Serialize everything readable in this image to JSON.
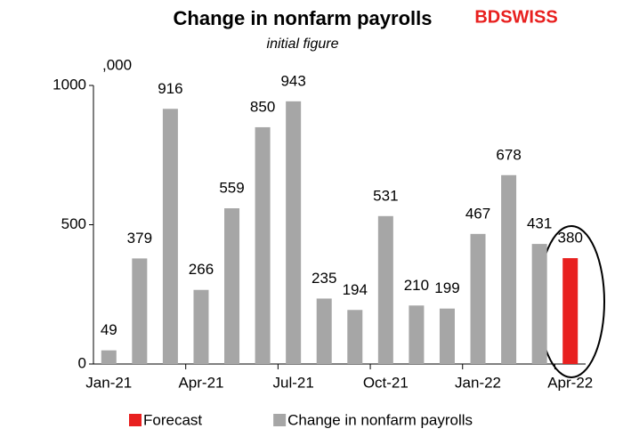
{
  "chart_data": {
    "type": "bar",
    "title": "Change in nonfarm payrolls",
    "subtitle": "initial figure",
    "logo": "BDSWISS",
    "y_unit": ",000",
    "categories": [
      "Jan-21",
      null,
      null,
      "Apr-21",
      null,
      null,
      "Jul-21",
      null,
      null,
      "Oct-21",
      null,
      null,
      "Jan-22",
      null,
      null,
      "Apr-22"
    ],
    "series": [
      {
        "name": "Forecast",
        "color": "#e8201f",
        "values": [
          null,
          null,
          null,
          null,
          null,
          null,
          null,
          null,
          null,
          null,
          null,
          null,
          null,
          null,
          null,
          380
        ]
      },
      {
        "name": "Change in nonfarm payrolls",
        "color": "#a6a6a6",
        "values": [
          49,
          379,
          916,
          266,
          559,
          850,
          943,
          235,
          194,
          531,
          210,
          199,
          467,
          678,
          431,
          null
        ]
      }
    ],
    "ylim": [
      0,
      1000
    ],
    "yticks": [
      0,
      500,
      1000
    ],
    "grid": false
  }
}
